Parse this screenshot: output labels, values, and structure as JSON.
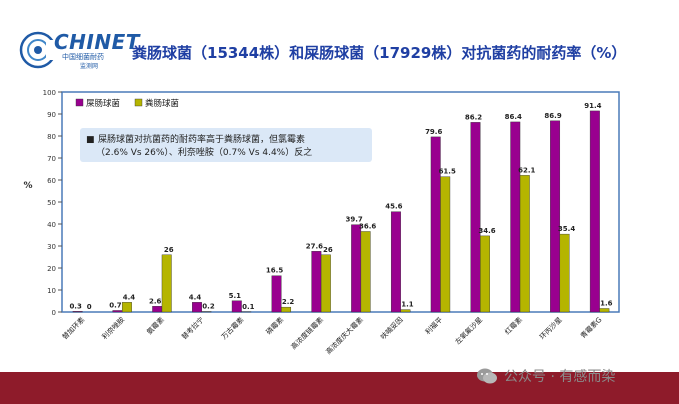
{
  "logo": {
    "name": "CHINET",
    "line1": "中国细菌耐药",
    "line2": "监测网"
  },
  "title": "粪肠球菌（15344株）和屎肠球菌（17929株）对抗菌药的耐药率（%）",
  "watermark": "公众号 · 有感而染",
  "colors": {
    "faecium": "#99008f",
    "faecalis": "#b5b500",
    "plot_border": "#4a7ab8",
    "note_bg": "#dbe8f7",
    "footer": "#8e1b2a"
  },
  "chart_data": {
    "type": "bar",
    "ylabel": "%",
    "ylim": [
      0,
      100
    ],
    "yticks": [
      0,
      10,
      20,
      30,
      40,
      50,
      60,
      70,
      80,
      90,
      100
    ],
    "grid": false,
    "legend_position": "top-left",
    "categories": [
      "替加环素",
      "利奈唑胺",
      "氨霉素",
      "替考拉宁",
      "万古霉素",
      "磷霉素",
      "高浓度链霉素",
      "高浓度庆大霉素",
      "呋喃妥因",
      "利福平",
      "左氧氟沙星",
      "红霉素",
      "环丙沙星",
      "青霉素G"
    ],
    "series": [
      {
        "name": "屎肠球菌",
        "values": [
          0.3,
          0.7,
          2.6,
          4.4,
          5.1,
          16.5,
          27.6,
          39.7,
          45.6,
          79.6,
          86.2,
          86.4,
          86.9,
          91.4
        ]
      },
      {
        "name": "粪肠球菌",
        "values": [
          0,
          4.4,
          26,
          0.2,
          0.1,
          2.2,
          26,
          36.6,
          1.1,
          61.5,
          34.6,
          62.1,
          35.4,
          1.6
        ]
      }
    ],
    "value_labels": [
      [
        "0.3",
        "0.7",
        "2.6",
        "4.4",
        "5.1",
        "16.5",
        "27.6",
        "39.7",
        "45.6",
        "79.6",
        "86.2",
        "86.4",
        "86.9",
        "91.4"
      ],
      [
        "0",
        "4.4",
        "26",
        "0.2",
        "0.1",
        "2.2",
        "26",
        "36.6",
        "1.1",
        "61.5",
        "34.6",
        "62.1",
        "35.4",
        "1.6"
      ]
    ],
    "annotation": {
      "bullet": "■",
      "line1": "屎肠球菌对抗菌药的耐药率高于粪肠球菌，但氯霉素",
      "line2": "（2.6% Vs 26%）、利奈唑胺（0.7% Vs 4.4%）反之"
    }
  }
}
